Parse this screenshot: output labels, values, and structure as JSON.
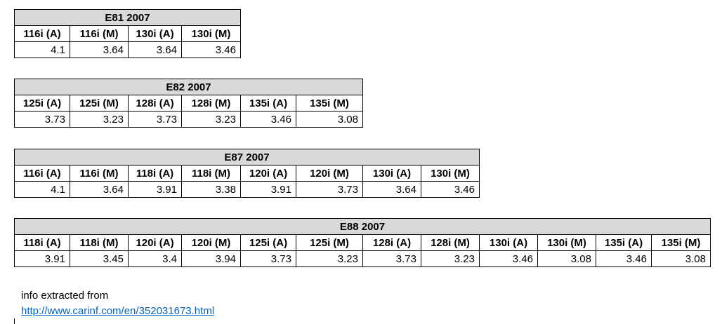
{
  "tables": [
    {
      "title": "E81 2007",
      "headers": [
        "116i (A)",
        "116i (M)",
        "130i (A)",
        "130i (M)"
      ],
      "values": [
        "4.1",
        "3.64",
        "3.64",
        "3.46"
      ]
    },
    {
      "title": "E82 2007",
      "headers": [
        "125i (A)",
        "125i (M)",
        "128i (A)",
        "128i (M)",
        "135i (A)",
        "135i (M)"
      ],
      "values": [
        "3.73",
        "3.23",
        "3.73",
        "3.23",
        "3.46",
        "3.08"
      ]
    },
    {
      "title": "E87 2007",
      "headers": [
        "116i (A)",
        "116i (M)",
        "118i (A)",
        "118i (M)",
        "120i (A)",
        "120i (M)",
        "130i (A)",
        "130i (M)"
      ],
      "values": [
        "4.1",
        "3.64",
        "3.91",
        "3.38",
        "3.91",
        "3.73",
        "3.64",
        "3.46"
      ]
    },
    {
      "title": "E88 2007",
      "headers": [
        "118i (A)",
        "118i (M)",
        "120i (A)",
        "120i (M)",
        "125i (A)",
        "125i (M)",
        "128i (A)",
        "128i (M)",
        "130i (A)",
        "130i (M)",
        "135i (A)",
        "135i (M)"
      ],
      "values": [
        "3.91",
        "3.45",
        "3.4",
        "3.94",
        "3.73",
        "3.23",
        "3.73",
        "3.23",
        "3.46",
        "3.08",
        "3.46",
        "3.08"
      ]
    }
  ],
  "note": {
    "text": "info extracted from",
    "link": "http://www.carinf.com/en/352031673.html"
  }
}
